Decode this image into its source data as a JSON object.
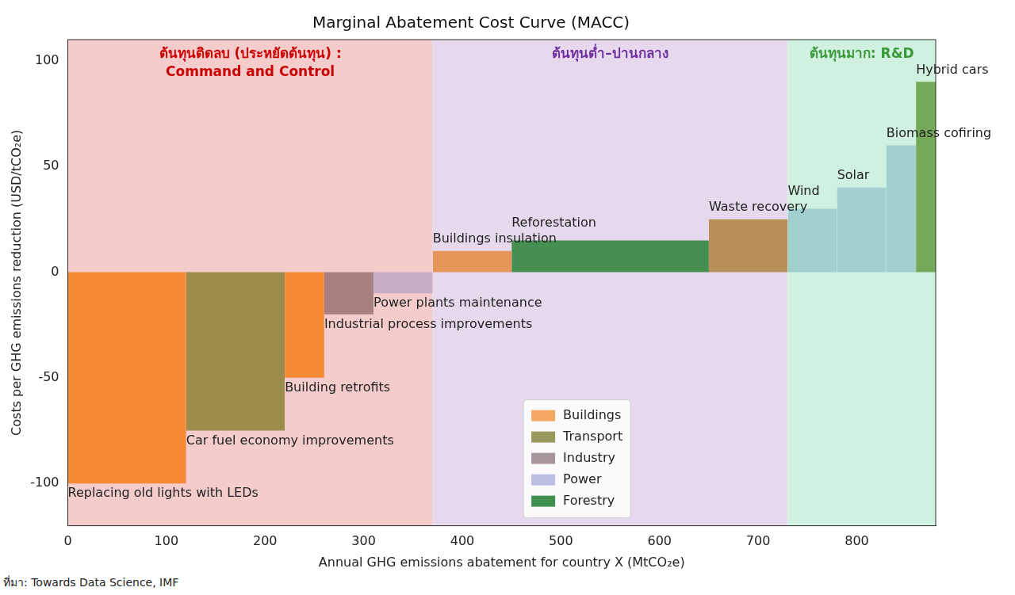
{
  "chart_data": {
    "type": "bar",
    "title": "Marginal Abatement Cost Curve (MACC)",
    "x_label": "Annual GHG emissions abatement for country X (MtCO₂e)",
    "y_label": "Costs per GHG emissions reduction (USD/tCO₂e)",
    "source": "ที่มา: Towards Data Science, IMF",
    "xlim": [
      0,
      880
    ],
    "xticks": [
      0,
      100,
      200,
      300,
      400,
      500,
      600,
      700,
      800
    ],
    "ylim": [
      -120,
      110
    ],
    "yticks": [
      -100,
      -50,
      0,
      50,
      100
    ],
    "grid": false,
    "legend": "lower center",
    "regions": [
      {
        "lines": [
          "ต้นทุนติดลบ (ประหยัดต้นทุน) :",
          "Command and Control"
        ],
        "xlim": [
          0,
          370
        ],
        "color": "#f4cccc",
        "text_color": "#cc0000"
      },
      {
        "lines": [
          "ต้นทุนต่ำ–ปานกลาง"
        ],
        "xlim": [
          370,
          730
        ],
        "color": "#e6d9ee",
        "text_color": "#7030a0"
      },
      {
        "lines": [
          "ต้นทุนมาก: R&D"
        ],
        "xlim": [
          730,
          880
        ],
        "color": "#d0f0e0",
        "text_color": "#3a9a3a"
      }
    ],
    "sectors": [
      {
        "name": "Buildings",
        "color": "#f5a862"
      },
      {
        "name": "Transport",
        "color": "#979a5c"
      },
      {
        "name": "Industry",
        "color": "#a8959c"
      },
      {
        "name": "Power",
        "color": "#b9bee2"
      },
      {
        "name": "Forestry",
        "color": "#3f8f4e"
      }
    ],
    "measures": [
      {
        "name": "Replacing old lights with LEDs",
        "abatement": 120,
        "cost": -100,
        "color": "#f48a35"
      },
      {
        "name": "Car fuel economy improvements",
        "abatement": 100,
        "cost": -75,
        "color": "#9c8c4c"
      },
      {
        "name": "Building retrofits",
        "abatement": 40,
        "cost": -50,
        "color": "#f48a35"
      },
      {
        "name": "Industrial process improvements",
        "abatement": 50,
        "cost": -20,
        "color": "#a88080"
      },
      {
        "name": "Power plants maintenance",
        "abatement": 60,
        "cost": -10,
        "color": "#c9afc6"
      },
      {
        "name": "Buildings insulation",
        "abatement": 80,
        "cost": 10,
        "color": "#e8955a"
      },
      {
        "name": "Reforestation",
        "abatement": 200,
        "cost": 15,
        "color": "#458f50"
      },
      {
        "name": "Waste recovery",
        "abatement": 80,
        "cost": 25,
        "color": "#b8905a"
      },
      {
        "name": "Wind",
        "abatement": 50,
        "cost": 30,
        "color": "#a2d0ce"
      },
      {
        "name": "Solar",
        "abatement": 50,
        "cost": 40,
        "color": "#a2d0ce"
      },
      {
        "name": "Biomass cofiring",
        "abatement": 30,
        "cost": 60,
        "color": "#a2d0ce"
      },
      {
        "name": "Hybrid cars",
        "abatement": 20,
        "cost": 90,
        "color": "#74a95a"
      }
    ]
  }
}
